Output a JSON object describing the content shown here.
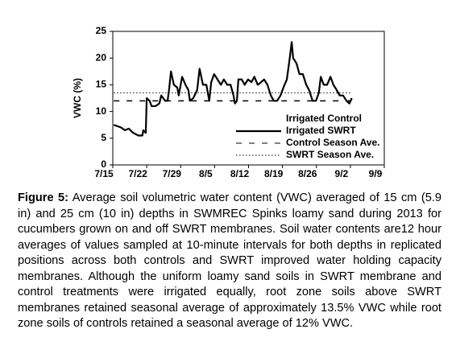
{
  "chart_data": {
    "type": "line",
    "y_label": "VWC (%)",
    "xlim": [
      0,
      56
    ],
    "ylim": [
      0,
      25
    ],
    "xticks": [
      {
        "value": 0,
        "label": "7/15"
      },
      {
        "value": 7,
        "label": "7/22"
      },
      {
        "value": 14,
        "label": "7/29"
      },
      {
        "value": 21,
        "label": "8/5"
      },
      {
        "value": 28,
        "label": "8/12"
      },
      {
        "value": 35,
        "label": "8/19"
      },
      {
        "value": 42,
        "label": "8/26"
      },
      {
        "value": 49,
        "label": "9/2"
      },
      {
        "value": 56,
        "label": "9/9"
      }
    ],
    "yticks": [
      0,
      5,
      10,
      15,
      20,
      25
    ],
    "legend_only": [
      {
        "name": "Irrigated Control",
        "color": "none"
      }
    ],
    "x": [
      0.2,
      0.8,
      1.7,
      2.5,
      3.3,
      4.2,
      5.3,
      6.1,
      6.3,
      6.8,
      7.0,
      7.6,
      8.0,
      8.8,
      9.6,
      10.0,
      10.8,
      11.3,
      11.6,
      12.0,
      12.6,
      13.3,
      13.6,
      14.3,
      15.0,
      15.6,
      15.9,
      16.6,
      17.4,
      17.9,
      18.6,
      19.3,
      19.9,
      20.3,
      20.9,
      21.6,
      22.3,
      22.9,
      23.6,
      24.3,
      24.9,
      25.2,
      25.6,
      25.9,
      26.6,
      27.2,
      27.9,
      28.6,
      29.2,
      29.9,
      30.6,
      31.2,
      31.9,
      32.6,
      33.2,
      33.9,
      34.6,
      35.2,
      35.9,
      36.5,
      36.9,
      37.2,
      37.9,
      38.5,
      39.2,
      39.9,
      40.5,
      41.2,
      41.9,
      42.5,
      42.9,
      43.5,
      44.2,
      44.9,
      45.5,
      46.2,
      46.8,
      47.5,
      48.2,
      48.8,
      49.3
    ],
    "series": [
      {
        "name": "Irrigated SWRT",
        "color": "#000000",
        "values": [
          7.5,
          7.3,
          7,
          6.5,
          6.8,
          6,
          5.5,
          5.5,
          6.5,
          6,
          12.5,
          12,
          11,
          11,
          11.5,
          13,
          12,
          12,
          14,
          17.5,
          15,
          14.5,
          13,
          16.5,
          15,
          14,
          12,
          12.5,
          14,
          18,
          15,
          15,
          12,
          15.5,
          17,
          16,
          15,
          16,
          15,
          15,
          13,
          11.5,
          12,
          16,
          16,
          15,
          16,
          15.5,
          16.5,
          15,
          15.5,
          16,
          15,
          13,
          12,
          12,
          13,
          14.5,
          16,
          20,
          23,
          20,
          19,
          17,
          17,
          15,
          14,
          12,
          12,
          13.5,
          16.5,
          15,
          15,
          16.5,
          15,
          14,
          13,
          13,
          12,
          11.5,
          12.5
        ]
      }
    ],
    "reference_lines": [
      {
        "name": "Control Season Ave.",
        "value": 12,
        "style": "dashed",
        "color": "#000000"
      },
      {
        "name": "SWRT Season Ave.",
        "value": 13.5,
        "style": "dotted",
        "color": "#000000"
      }
    ]
  },
  "caption": {
    "label": "Figure 5:",
    "text": " Average soil volumetric water content (VWC) averaged of 15 cm (5.9 in) and 25 cm (10 in) depths in SWMREC Spinks loamy sand during 2013 for cucumbers grown on and off SWRT membranes. Soil water contents are12 hour averages of values sampled at 10-minute intervals for both depths in replicated positions across both controls and SWRT improved water holding capacity membranes. Although the uniform loamy sand soils in SWRT membrane and control treatments were irrigated equally, root zone soils above SWRT membranes retained seasonal average of approximately 13.5% VWC while root zone soils of controls retained a seasonal average of 12% VWC."
  }
}
